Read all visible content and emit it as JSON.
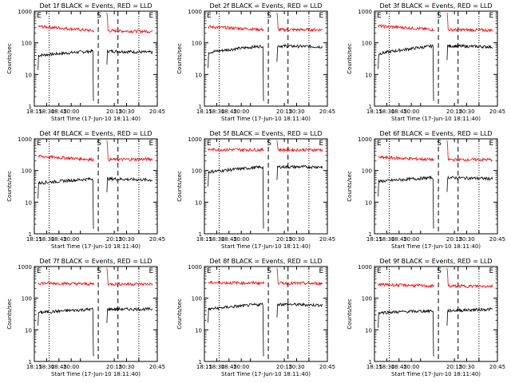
{
  "figure": {
    "ylabel": "Counts/sec",
    "xlabel": "Start Time (17-Jun-10 18:11:40)",
    "x_ticks": [
      "18:15",
      "18:30",
      "18:45",
      "20:00",
      "20:15",
      "20:30",
      "20:45"
    ],
    "y_ticks": [
      "1",
      "10",
      "100",
      "1000"
    ],
    "markers": {
      "start": "S",
      "end": "E"
    },
    "colors": {
      "events": "#000000",
      "lld": "#ff0000",
      "axes": "#000000"
    }
  },
  "chart_data": [
    {
      "type": "line",
      "title": "Det 1f BLACK = Events, RED = LLD",
      "ylim": [
        1,
        1000
      ],
      "yscale": "log",
      "series": [
        {
          "name": "BLACK = Events",
          "level": 55,
          "start": 40,
          "end": 50
        },
        {
          "name": "RED = LLD",
          "level": 240,
          "start": 330,
          "end": 230
        }
      ]
    },
    {
      "type": "line",
      "title": "Det 2f BLACK = Events, RED = LLD",
      "ylim": [
        1,
        1000
      ],
      "yscale": "log",
      "series": [
        {
          "name": "BLACK = Events",
          "level": 80,
          "start": 50,
          "end": 75
        },
        {
          "name": "RED = LLD",
          "level": 260,
          "start": 320,
          "end": 260
        }
      ]
    },
    {
      "type": "line",
      "title": "Det 3f BLACK = Events, RED = LLD",
      "ylim": [
        1,
        1000
      ],
      "yscale": "log",
      "series": [
        {
          "name": "BLACK = Events",
          "level": 80,
          "start": 45,
          "end": 75
        },
        {
          "name": "RED = LLD",
          "level": 260,
          "start": 340,
          "end": 250
        }
      ]
    },
    {
      "type": "line",
      "title": "Det 4f BLACK = Events, RED = LLD",
      "ylim": [
        1,
        1000
      ],
      "yscale": "log",
      "series": [
        {
          "name": "BLACK = Events",
          "level": 55,
          "start": 40,
          "end": 50
        },
        {
          "name": "RED = LLD",
          "level": 220,
          "start": 280,
          "end": 230
        }
      ]
    },
    {
      "type": "line",
      "title": "Det 5f BLACK = Events, RED = LLD",
      "ylim": [
        1,
        1000
      ],
      "yscale": "log",
      "series": [
        {
          "name": "BLACK = Events",
          "level": 130,
          "start": 90,
          "end": 130
        },
        {
          "name": "RED = LLD",
          "level": 450,
          "start": 460,
          "end": 450
        }
      ]
    },
    {
      "type": "line",
      "title": "Det 6f BLACK = Events, RED = LLD",
      "ylim": [
        1,
        1000
      ],
      "yscale": "log",
      "series": [
        {
          "name": "BLACK = Events",
          "level": 60,
          "start": 45,
          "end": 55
        },
        {
          "name": "RED = LLD",
          "level": 220,
          "start": 260,
          "end": 220
        }
      ]
    },
    {
      "type": "line",
      "title": "Det 7f BLACK = Events, RED = LLD",
      "ylim": [
        1,
        1000
      ],
      "yscale": "log",
      "series": [
        {
          "name": "BLACK = Events",
          "level": 45,
          "start": 35,
          "end": 45
        },
        {
          "name": "RED = LLD",
          "level": 280,
          "start": 300,
          "end": 280
        }
      ]
    },
    {
      "type": "line",
      "title": "Det 8f BLACK = Events, RED = LLD",
      "ylim": [
        1,
        1000
      ],
      "yscale": "log",
      "series": [
        {
          "name": "BLACK = Events",
          "level": 65,
          "start": 45,
          "end": 60
        },
        {
          "name": "RED = LLD",
          "level": 300,
          "start": 310,
          "end": 290
        }
      ]
    },
    {
      "type": "line",
      "title": "Det 9f BLACK = Events, RED = LLD",
      "ylim": [
        1,
        1000
      ],
      "yscale": "log",
      "series": [
        {
          "name": "BLACK = Events",
          "level": 40,
          "start": 35,
          "end": 45
        },
        {
          "name": "RED = LLD",
          "level": 240,
          "start": 270,
          "end": 240
        }
      ]
    }
  ]
}
